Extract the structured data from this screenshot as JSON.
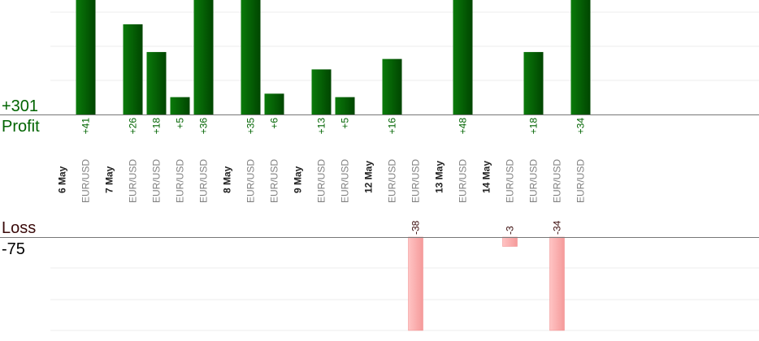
{
  "summary": {
    "profit_total": "+301",
    "profit_label": "Profit",
    "loss_label": "Loss",
    "loss_total": "-75"
  },
  "colors": {
    "profit_bar": "#0a6b0a",
    "profit_bar_dark": "#004a00",
    "profit_text": "#006400",
    "loss_bar": "#ffb3b3",
    "loss_text": "#3a0a0a",
    "grid": "#eeeeee",
    "baseline": "#777777",
    "date_text": "#222222",
    "symbol_text": "#808080"
  },
  "chart_data": {
    "type": "bar",
    "columns": [
      {
        "kind": "date",
        "label": "6 May"
      },
      {
        "kind": "trade",
        "symbol": "EUR/USD",
        "value": 41,
        "label": "+41"
      },
      {
        "kind": "date",
        "label": "7 May"
      },
      {
        "kind": "trade",
        "symbol": "EUR/USD",
        "value": 26,
        "label": "+26"
      },
      {
        "kind": "trade",
        "symbol": "EUR/USD",
        "value": 18,
        "label": "+18"
      },
      {
        "kind": "trade",
        "symbol": "EUR/USD",
        "value": 5,
        "label": "+5"
      },
      {
        "kind": "trade",
        "symbol": "EUR/USD",
        "value": 36,
        "label": "+36"
      },
      {
        "kind": "date",
        "label": "8 May"
      },
      {
        "kind": "trade",
        "symbol": "EUR/USD",
        "value": 35,
        "label": "+35"
      },
      {
        "kind": "trade",
        "symbol": "EUR/USD",
        "value": 6,
        "label": "+6"
      },
      {
        "kind": "date",
        "label": "9 May"
      },
      {
        "kind": "trade",
        "symbol": "EUR/USD",
        "value": 13,
        "label": "+13"
      },
      {
        "kind": "trade",
        "symbol": "EUR/USD",
        "value": 5,
        "label": "+5"
      },
      {
        "kind": "date",
        "label": "12 May"
      },
      {
        "kind": "trade",
        "symbol": "EUR/USD",
        "value": 16,
        "label": "+16"
      },
      {
        "kind": "trade",
        "symbol": "EUR/USD",
        "value": -38,
        "label": "-38"
      },
      {
        "kind": "date",
        "label": "13 May"
      },
      {
        "kind": "trade",
        "symbol": "EUR/USD",
        "value": 48,
        "label": "+48"
      },
      {
        "kind": "date",
        "label": "14 May"
      },
      {
        "kind": "trade",
        "symbol": "EUR/USD",
        "value": -3,
        "label": "-3"
      },
      {
        "kind": "trade",
        "symbol": "EUR/USD",
        "value": 18,
        "label": "+18"
      },
      {
        "kind": "trade",
        "symbol": "EUR/USD",
        "value": -34,
        "label": "-34"
      },
      {
        "kind": "trade",
        "symbol": "EUR/USD",
        "value": 34,
        "label": "+34"
      }
    ],
    "profit_axis_max": 33,
    "loss_axis_max": 30,
    "grid": true
  }
}
